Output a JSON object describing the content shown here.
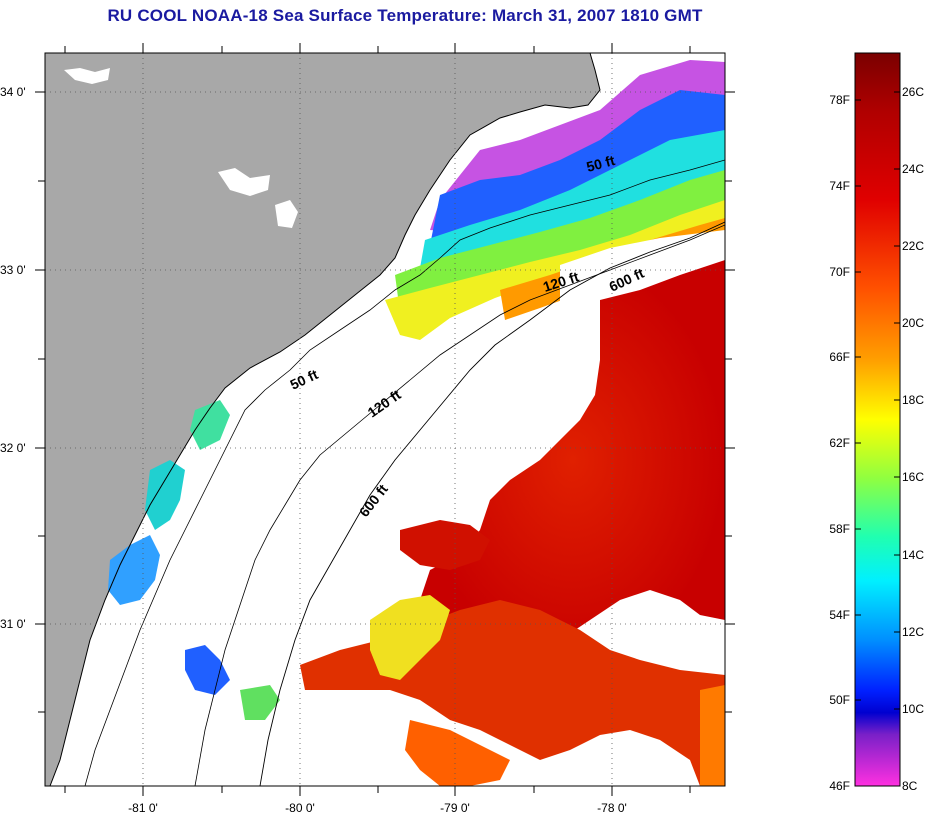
{
  "title": "RU COOL  NOAA-18  Sea Surface Temperature:  March 31, 2007 1810 GMT",
  "latitude_ticks": [
    "34 0'",
    "33 0'",
    "32 0'",
    "31 0'"
  ],
  "longitude_ticks": [
    "-81 0'",
    "-80 0'",
    "-79 0'",
    "-78 0'"
  ],
  "contours": [
    {
      "label": "50 ft",
      "id": "c50-north"
    },
    {
      "label": "120 ft",
      "id": "c120-north"
    },
    {
      "label": "600 ft",
      "id": "c600-north"
    },
    {
      "label": "50 ft",
      "id": "c50-south"
    },
    {
      "label": "120 ft",
      "id": "c120-south"
    },
    {
      "label": "600 ft",
      "id": "c600-south"
    }
  ],
  "colorbar": {
    "fahrenheit": [
      "78F",
      "74F",
      "70F",
      "66F",
      "62F",
      "58F",
      "54F",
      "50F",
      "46F"
    ],
    "celsius": [
      "26C",
      "24C",
      "22C",
      "20C",
      "18C",
      "16C",
      "14C",
      "12C",
      "10C",
      "8C"
    ],
    "gradient": [
      "#7a0000",
      "#b00000",
      "#e00000",
      "#ff3000",
      "#ff7000",
      "#ffb000",
      "#ffff00",
      "#a0ff30",
      "#30ff90",
      "#00ffff",
      "#00a0ff",
      "#0040ff",
      "#0000c0",
      "#8020c0",
      "#ff30e0"
    ]
  },
  "colors": {
    "land": "#a8a8a8",
    "ocean_nodata": "#ffffff",
    "title": "#1a1aa0"
  }
}
